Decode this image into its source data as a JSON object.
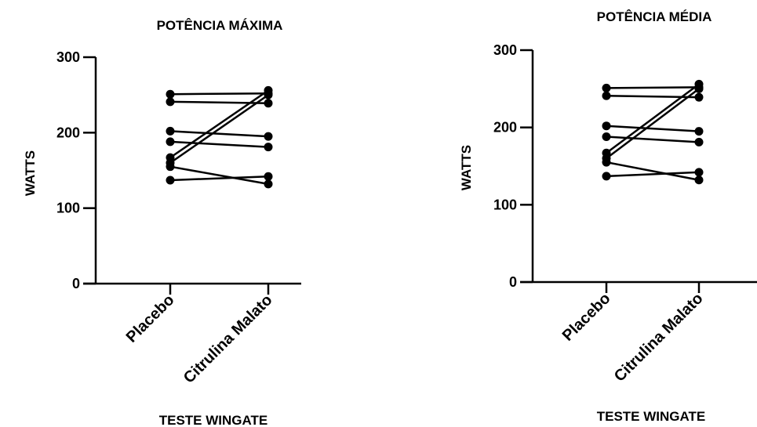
{
  "chart_data": [
    {
      "type": "line",
      "title": "POTÊNCIA MÁXIMA",
      "xlabel": "TESTE WINGATE",
      "ylabel": "WATTS",
      "categories": [
        "Placebo",
        "Citrulina Malato"
      ],
      "yticks": [
        0,
        100,
        200,
        300
      ],
      "ylim": [
        0,
        300
      ],
      "grid": false,
      "legend": "none",
      "series": [
        {
          "values": [
            251,
            252
          ]
        },
        {
          "values": [
            241,
            239
          ]
        },
        {
          "values": [
            202,
            195
          ]
        },
        {
          "values": [
            188,
            181
          ]
        },
        {
          "values": [
            167,
            256
          ]
        },
        {
          "values": [
            160,
            250
          ]
        },
        {
          "values": [
            155,
            132
          ]
        },
        {
          "values": [
            137,
            142
          ]
        }
      ],
      "color": "#000000"
    },
    {
      "type": "line",
      "title": "POTÊNCIA MÉDIA",
      "xlabel": "TESTE WINGATE",
      "ylabel": "WATTS",
      "categories": [
        "Placebo",
        "Citrulina Malato"
      ],
      "yticks": [
        0,
        100,
        200,
        300
      ],
      "ylim": [
        0,
        300
      ],
      "grid": false,
      "legend": "none",
      "series": [
        {
          "values": [
            251,
            252
          ]
        },
        {
          "values": [
            241,
            239
          ]
        },
        {
          "values": [
            202,
            195
          ]
        },
        {
          "values": [
            188,
            181
          ]
        },
        {
          "values": [
            167,
            256
          ]
        },
        {
          "values": [
            160,
            250
          ]
        },
        {
          "values": [
            155,
            132
          ]
        },
        {
          "values": [
            137,
            142
          ]
        }
      ],
      "color": "#000000"
    }
  ]
}
